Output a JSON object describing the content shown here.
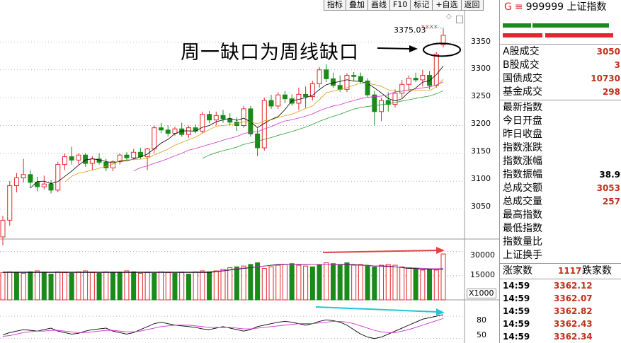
{
  "toolbar": {
    "buttons": [
      "指标",
      "叠加",
      "画线",
      "F10",
      "标记",
      "+自选",
      "返回"
    ]
  },
  "annotation": {
    "text": "周一缺口为周线缺口"
  },
  "chart_data": [
    {
      "type": "candlestick",
      "title": "",
      "peak_label": "3375.03",
      "ylim": [
        3000,
        3400
      ],
      "yticks": [
        3050,
        3100,
        3150,
        3200,
        3250,
        3300,
        3350
      ],
      "ohlc": [
        [
          3000,
          3038,
          2985,
          3030
        ],
        [
          3030,
          3100,
          3020,
          3092
        ],
        [
          3092,
          3115,
          3080,
          3106
        ],
        [
          3106,
          3140,
          3098,
          3112
        ],
        [
          3112,
          3120,
          3088,
          3098
        ],
        [
          3098,
          3108,
          3082,
          3090
        ],
        [
          3090,
          3110,
          3085,
          3095
        ],
        [
          3095,
          3102,
          3078,
          3084
        ],
        [
          3084,
          3135,
          3080,
          3130
        ],
        [
          3130,
          3150,
          3120,
          3144
        ],
        [
          3144,
          3162,
          3130,
          3138
        ],
        [
          3138,
          3150,
          3130,
          3147
        ],
        [
          3147,
          3150,
          3126,
          3132
        ],
        [
          3132,
          3145,
          3120,
          3140
        ],
        [
          3140,
          3150,
          3130,
          3134
        ],
        [
          3134,
          3140,
          3118,
          3124
        ],
        [
          3124,
          3138,
          3118,
          3135
        ],
        [
          3135,
          3150,
          3130,
          3147
        ],
        [
          3147,
          3152,
          3138,
          3142
        ],
        [
          3142,
          3158,
          3138,
          3152
        ],
        [
          3152,
          3160,
          3140,
          3144
        ],
        [
          3144,
          3160,
          3120,
          3158
        ],
        [
          3158,
          3200,
          3150,
          3196
        ],
        [
          3196,
          3205,
          3186,
          3192
        ],
        [
          3192,
          3200,
          3180,
          3186
        ],
        [
          3186,
          3198,
          3182,
          3194
        ],
        [
          3194,
          3205,
          3180,
          3184
        ],
        [
          3184,
          3200,
          3178,
          3196
        ],
        [
          3196,
          3202,
          3186,
          3190
        ],
        [
          3190,
          3225,
          3186,
          3220
        ],
        [
          3220,
          3226,
          3204,
          3210
        ],
        [
          3210,
          3225,
          3200,
          3218
        ],
        [
          3218,
          3228,
          3205,
          3212
        ],
        [
          3212,
          3222,
          3200,
          3206
        ],
        [
          3206,
          3215,
          3190,
          3200
        ],
        [
          3200,
          3235,
          3196,
          3230
        ],
        [
          3230,
          3235,
          3180,
          3185
        ],
        [
          3185,
          3195,
          3145,
          3160
        ],
        [
          3160,
          3250,
          3155,
          3245
        ],
        [
          3245,
          3255,
          3230,
          3235
        ],
        [
          3235,
          3260,
          3230,
          3255
        ],
        [
          3255,
          3262,
          3240,
          3248
        ],
        [
          3248,
          3256,
          3236,
          3240
        ],
        [
          3240,
          3268,
          3228,
          3256
        ],
        [
          3256,
          3270,
          3232,
          3252
        ],
        [
          3252,
          3280,
          3245,
          3275
        ],
        [
          3275,
          3305,
          3268,
          3300
        ],
        [
          3300,
          3310,
          3278,
          3284
        ],
        [
          3284,
          3295,
          3268,
          3272
        ],
        [
          3272,
          3290,
          3260,
          3265
        ],
        [
          3265,
          3294,
          3260,
          3290
        ],
        [
          3290,
          3296,
          3280,
          3288
        ],
        [
          3288,
          3295,
          3275,
          3280
        ],
        [
          3280,
          3285,
          3250,
          3255
        ],
        [
          3255,
          3262,
          3200,
          3225
        ],
        [
          3225,
          3250,
          3208,
          3245
        ],
        [
          3245,
          3260,
          3225,
          3238
        ],
        [
          3238,
          3265,
          3232,
          3258
        ],
        [
          3258,
          3282,
          3250,
          3274
        ],
        [
          3274,
          3290,
          3262,
          3285
        ],
        [
          3285,
          3295,
          3278,
          3282
        ],
        [
          3282,
          3300,
          3270,
          3290
        ],
        [
          3290,
          3298,
          3265,
          3272
        ],
        [
          3272,
          3332,
          3268,
          3328
        ],
        [
          3345,
          3375,
          3340,
          3362
        ]
      ],
      "ma_lines": [
        "+",
        "+",
        "+",
        "+"
      ]
    },
    {
      "type": "bar",
      "title": "",
      "unit_label": "X1000",
      "ylim": [
        0,
        36000
      ],
      "yticks": [
        15000,
        30000
      ],
      "values": [
        17000,
        17500,
        17000,
        16500,
        17500,
        18000,
        17000,
        16000,
        17500,
        17000,
        16500,
        17500,
        18000,
        17000,
        16500,
        17500,
        17000,
        17000,
        18000,
        17500,
        16500,
        17000,
        16500,
        17500,
        17000,
        16500,
        17000,
        16000,
        17500,
        18000,
        17500,
        18000,
        19000,
        20000,
        20500,
        21000,
        22000,
        23000,
        19500,
        20500,
        21500,
        22000,
        22500,
        21500,
        21000,
        20500,
        22000,
        23000,
        22500,
        22000,
        23000,
        21500,
        22000,
        21000,
        20500,
        21500,
        22000,
        21500,
        20500,
        20000,
        19500,
        18500,
        19000,
        18500,
        28500
      ],
      "colors": [
        "r",
        "r",
        "g",
        "r",
        "g",
        "r",
        "g",
        "g",
        "r",
        "r",
        "g",
        "r",
        "r",
        "r",
        "g",
        "r",
        "g",
        "g",
        "r",
        "g",
        "r",
        "r",
        "g",
        "r",
        "r",
        "g",
        "r",
        "g",
        "r",
        "r",
        "g",
        "r",
        "r",
        "r",
        "g",
        "r",
        "g",
        "g",
        "r",
        "r",
        "r",
        "r",
        "g",
        "r",
        "r",
        "g",
        "g",
        "r",
        "g",
        "g",
        "g",
        "r",
        "r",
        "g",
        "g",
        "r",
        "r",
        "r",
        "r",
        "r",
        "g",
        "r",
        "g",
        "r",
        "r"
      ],
      "ma_series": [
        {
          "values": [
            17000,
            17000,
            17000,
            17000,
            17000,
            17000,
            17000,
            17000,
            17000,
            17000,
            17000,
            17000,
            17000,
            17000,
            17000,
            17000,
            17000,
            17000,
            17000,
            17000,
            17000,
            17000,
            17000,
            17000,
            17000,
            17000,
            17000,
            17000,
            17000,
            17000,
            17000,
            17500,
            18000,
            18500,
            19000,
            19500,
            20000,
            20500,
            21000,
            21500,
            22000,
            22000,
            22000,
            22000,
            22000,
            22000,
            22000,
            22000,
            22000,
            22000,
            22000,
            22000,
            21500,
            21500,
            21000,
            21000,
            21000,
            20500,
            20000,
            19500,
            19500,
            19000,
            19000,
            19000,
            19000
          ]
        },
        {
          "values": [
            17500,
            17500,
            17500,
            17500,
            17500,
            17500,
            17500,
            17500,
            17500,
            17500,
            17500,
            17500,
            17500,
            17500,
            17500,
            17500,
            17500,
            17500,
            17500,
            17500,
            17500,
            17500,
            17500,
            17500,
            17500,
            17500,
            17500,
            17500,
            17500,
            17500,
            17500,
            17800,
            18200,
            18800,
            19300,
            19800,
            20200,
            20600,
            21000,
            21300,
            21600,
            21800,
            22000,
            22100,
            22100,
            22000,
            22000,
            22000,
            21900,
            21800,
            21700,
            21600,
            21400,
            21200,
            21000,
            20800,
            20600,
            20400,
            20200,
            20000,
            19800,
            19600,
            19400,
            19300,
            19500
          ]
        }
      ]
    },
    {
      "type": "line",
      "title": "",
      "ylim": [
        45,
        100
      ],
      "yticks": [
        50,
        80
      ],
      "series": [
        {
          "values": [
            55,
            58,
            60,
            62,
            61,
            60,
            62,
            64,
            60,
            58,
            56,
            57,
            60,
            62,
            63,
            64,
            60,
            58,
            56,
            58,
            62,
            66,
            70,
            72,
            70,
            68,
            67,
            66,
            65,
            63,
            62,
            64,
            66,
            64,
            62,
            60,
            62,
            66,
            68,
            70,
            72,
            73,
            72,
            70,
            68,
            70,
            73,
            75,
            74,
            72,
            68,
            62,
            56,
            52,
            50,
            52,
            56,
            60,
            64,
            68,
            72,
            76,
            78,
            80,
            82
          ]
        },
        {
          "values": [
            53,
            54,
            56,
            58,
            59,
            60,
            60,
            61,
            61,
            60,
            59,
            58,
            58,
            59,
            60,
            61,
            61,
            60,
            59,
            59,
            60,
            62,
            64,
            66,
            67,
            68,
            68,
            68,
            67,
            66,
            65,
            65,
            65,
            65,
            64,
            63,
            63,
            64,
            65,
            66,
            67,
            68,
            69,
            70,
            70,
            70,
            71,
            72,
            73,
            73,
            72,
            70,
            67,
            64,
            61,
            59,
            58,
            58,
            60,
            62,
            65,
            68,
            71,
            74,
            77
          ]
        }
      ]
    }
  ],
  "panel": {
    "header": {
      "g": "G",
      "menu": "≡",
      "code": "999999",
      "name": "上证指数"
    },
    "stats": [
      {
        "label": "A股成交",
        "value": "3050"
      },
      {
        "label": "B股成交",
        "value": "3"
      },
      {
        "label": "国债成交",
        "value": "10730"
      },
      {
        "label": "基金成交",
        "value": "298"
      }
    ],
    "index_rows": [
      {
        "label": "最新指数",
        "value": ""
      },
      {
        "label": "今日开盘",
        "value": ""
      },
      {
        "label": "昨日收盘",
        "value": ""
      },
      {
        "label": "指数涨跌",
        "value": ""
      },
      {
        "label": "指数涨幅",
        "value": ""
      },
      {
        "label": "指数振幅",
        "value": "38.9"
      },
      {
        "label": "总成交额",
        "value": "3053"
      },
      {
        "label": "总成交量",
        "value": "257"
      },
      {
        "label": "最高指数",
        "value": ""
      },
      {
        "label": "最低指数",
        "value": ""
      },
      {
        "label": "指数量比",
        "value": ""
      },
      {
        "label": "上证换手",
        "value": ""
      }
    ],
    "breadth": {
      "up_label": "涨家数",
      "up_value": "1117",
      "down_label": "跌家数"
    },
    "ticks": [
      {
        "time": "14:59",
        "price": "3362.12"
      },
      {
        "time": "14:59",
        "price": "3362.07"
      },
      {
        "time": "14:59",
        "price": "3362.82"
      },
      {
        "time": "14:59",
        "price": "3362.43"
      },
      {
        "time": "14:59",
        "price": "3362.34"
      }
    ]
  }
}
